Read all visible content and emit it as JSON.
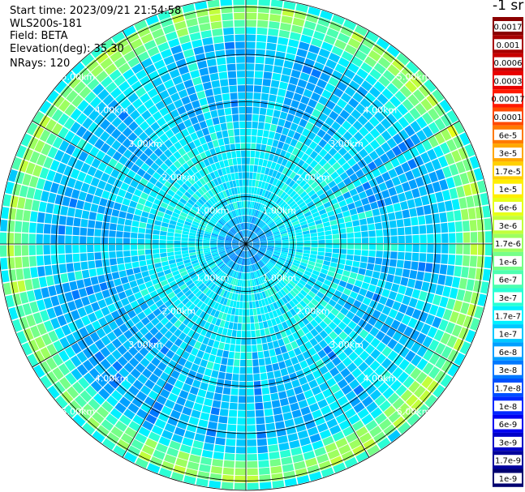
{
  "header": {
    "start_time": "Start time: 2023/09/21 21:54:58",
    "site": "WLS200s-181",
    "field": "Field: BETA",
    "elevation": "Elevation(deg): 35.30",
    "nrays": "NRays: 120"
  },
  "colorbar": {
    "unit_label": "-1 sr",
    "levels": [
      {
        "label": "0.0017",
        "color": "#8b0000"
      },
      {
        "label": "0.001",
        "color": "#a80000"
      },
      {
        "label": "0.0006",
        "color": "#c80000"
      },
      {
        "label": "0.0003",
        "color": "#e80000"
      },
      {
        "label": "0.00017",
        "color": "#ff1a00"
      },
      {
        "label": "0.0001",
        "color": "#ff4a00"
      },
      {
        "label": "6e-5",
        "color": "#ff7a00"
      },
      {
        "label": "3e-5",
        "color": "#ffa800"
      },
      {
        "label": "1.7e-5",
        "color": "#ffd000"
      },
      {
        "label": "1e-5",
        "color": "#ffee00"
      },
      {
        "label": "6e-6",
        "color": "#e6ff1a"
      },
      {
        "label": "3e-6",
        "color": "#c2ff3c"
      },
      {
        "label": "1.7e-6",
        "color": "#9dff60"
      },
      {
        "label": "1e-6",
        "color": "#76ff88"
      },
      {
        "label": "6e-7",
        "color": "#4dffb0"
      },
      {
        "label": "3e-7",
        "color": "#2affd5"
      },
      {
        "label": "1.7e-7",
        "color": "#00f0ff"
      },
      {
        "label": "1e-7",
        "color": "#00c8ff"
      },
      {
        "label": "6e-8",
        "color": "#00a0ff"
      },
      {
        "label": "3e-8",
        "color": "#0078ff"
      },
      {
        "label": "1.7e-8",
        "color": "#0050ff"
      },
      {
        "label": "1e-8",
        "color": "#0028ff"
      },
      {
        "label": "6e-9",
        "color": "#0000f0"
      },
      {
        "label": "3e-9",
        "color": "#0000c8"
      },
      {
        "label": "1.7e-9",
        "color": "#00009c"
      },
      {
        "label": "1e-9",
        "color": "#000070"
      }
    ]
  },
  "chart_data": {
    "type": "heatmap",
    "projection": "polar-ppi",
    "field": "BETA",
    "elevation_deg": 35.3,
    "n_rays": 120,
    "grid": true,
    "spokes_deg": [
      0,
      30,
      60,
      90,
      120,
      150,
      180,
      210,
      240,
      270,
      300,
      330
    ],
    "range_rings_km": [
      1,
      2,
      3,
      4,
      5
    ],
    "range_ring_labels": [
      "1.00km",
      "2.00km",
      "3.00km",
      "4.00km",
      "5.00km"
    ],
    "max_range_km": 5.2,
    "range_profile": [
      {
        "range_km": 0.0,
        "level_index": 18
      },
      {
        "range_km": 0.4,
        "level_index": 18
      },
      {
        "range_km": 0.8,
        "level_index": 16
      },
      {
        "range_km": 1.5,
        "level_index": 16
      },
      {
        "range_km": 2.2,
        "level_index": 16
      },
      {
        "range_km": 2.8,
        "level_index": 17
      },
      {
        "range_km": 3.5,
        "level_index": 17
      },
      {
        "range_km": 4.3,
        "level_index": 17
      },
      {
        "range_km": 4.7,
        "level_index": 13
      },
      {
        "range_km": 5.0,
        "level_index": 12
      },
      {
        "range_km": 5.2,
        "level_index": 17
      }
    ]
  }
}
